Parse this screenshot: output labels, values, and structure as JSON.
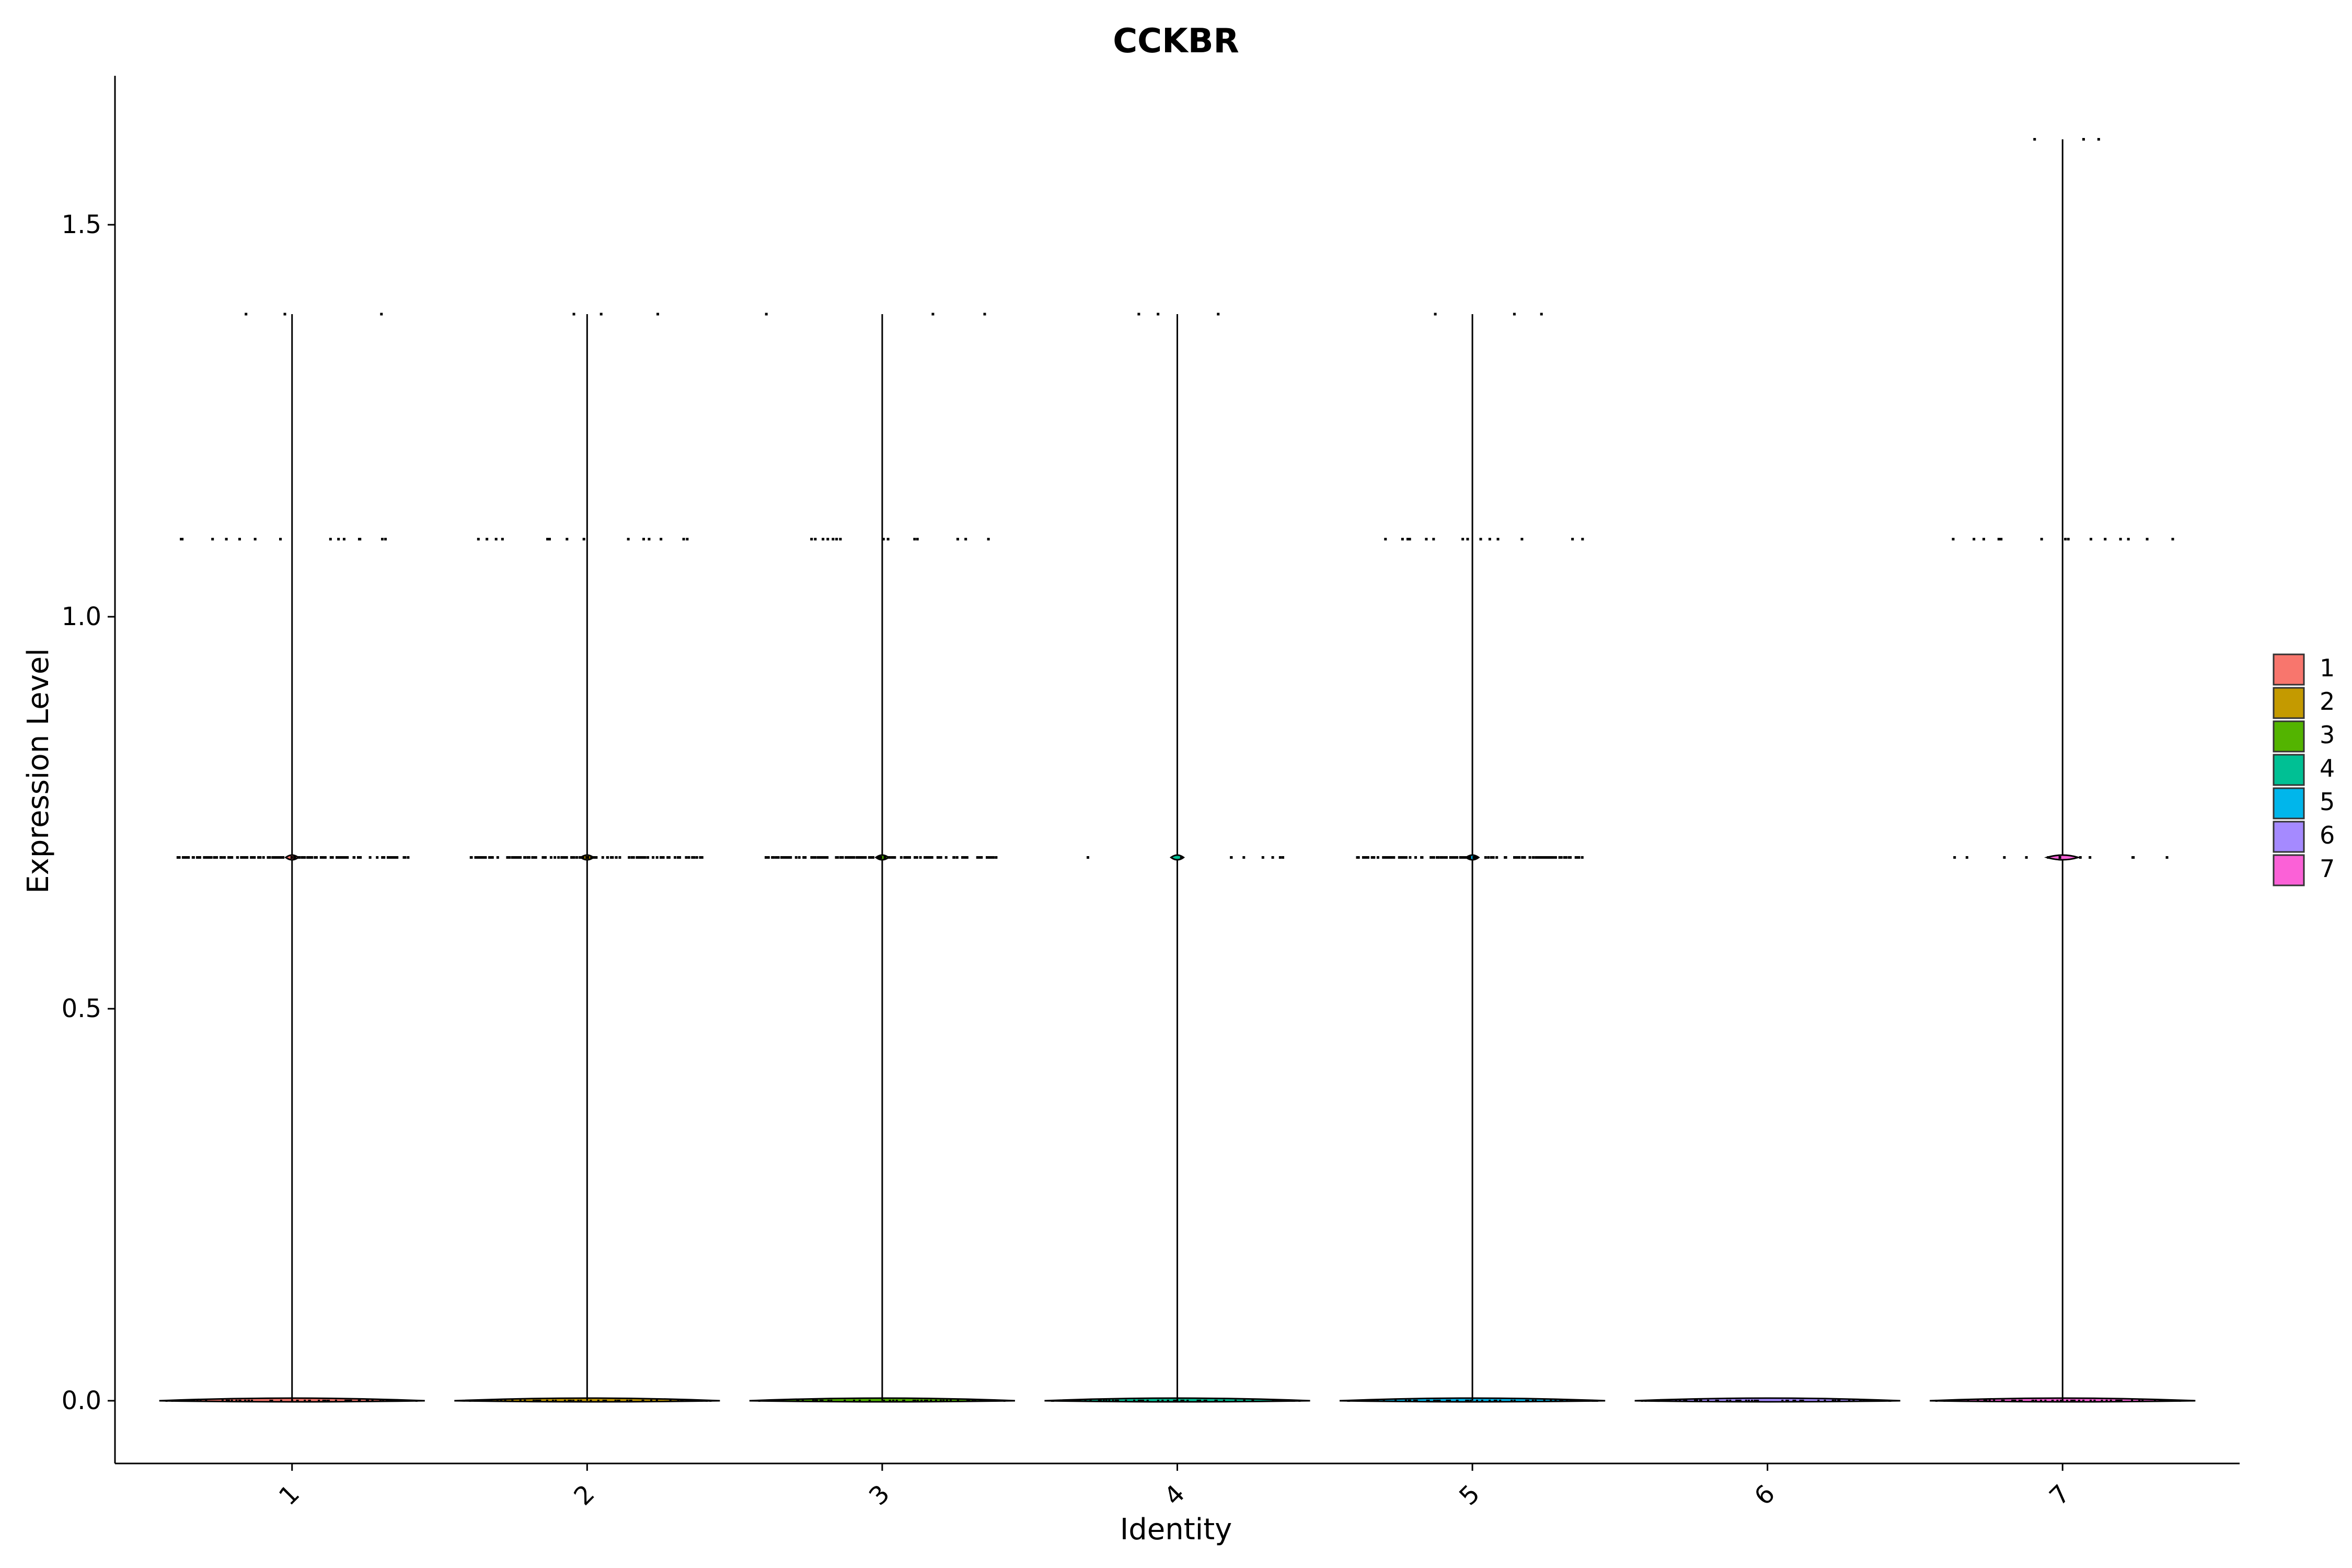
{
  "chart_data": {
    "type": "violin",
    "title": "CCKBR",
    "xlabel": "Identity",
    "ylabel": "Expression Level",
    "categories": [
      "1",
      "2",
      "3",
      "4",
      "5",
      "6",
      "7"
    ],
    "ylim": [
      -0.08,
      1.69
    ],
    "yticks": [
      0.0,
      0.5,
      1.0,
      1.5
    ],
    "ytick_labels": [
      "0.0",
      "0.5",
      "1.0",
      "1.5"
    ],
    "series": [
      {
        "category": "1",
        "color": "#F8766D",
        "max": 1.386,
        "jitter_levels": [
          0.693,
          1.099,
          1.386
        ]
      },
      {
        "category": "2",
        "color": "#C49A00",
        "max": 1.386,
        "jitter_levels": [
          0.693,
          1.099,
          1.386
        ]
      },
      {
        "category": "3",
        "color": "#53B400",
        "max": 1.386,
        "jitter_levels": [
          0.693,
          1.099,
          1.386
        ]
      },
      {
        "category": "4",
        "color": "#00C094",
        "max": 1.386,
        "jitter_levels": [
          0.693,
          1.386
        ]
      },
      {
        "category": "5",
        "color": "#00B6EB",
        "max": 1.386,
        "jitter_levels": [
          0.693,
          1.099,
          1.386
        ]
      },
      {
        "category": "6",
        "color": "#A58AFF",
        "max": 0.0,
        "jitter_levels": []
      },
      {
        "category": "7",
        "color": "#FB61D7",
        "max": 1.609,
        "jitter_levels": [
          0.693,
          1.099,
          1.609
        ]
      }
    ],
    "legend": {
      "placement": "right",
      "items": [
        {
          "label": "1",
          "color": "#F8766D"
        },
        {
          "label": "2",
          "color": "#C49A00"
        },
        {
          "label": "3",
          "color": "#53B400"
        },
        {
          "label": "4",
          "color": "#00C094"
        },
        {
          "label": "5",
          "color": "#00B6EB"
        },
        {
          "label": "6",
          "color": "#A58AFF"
        },
        {
          "label": "7",
          "color": "#FB61D7"
        }
      ]
    },
    "grid": false
  }
}
